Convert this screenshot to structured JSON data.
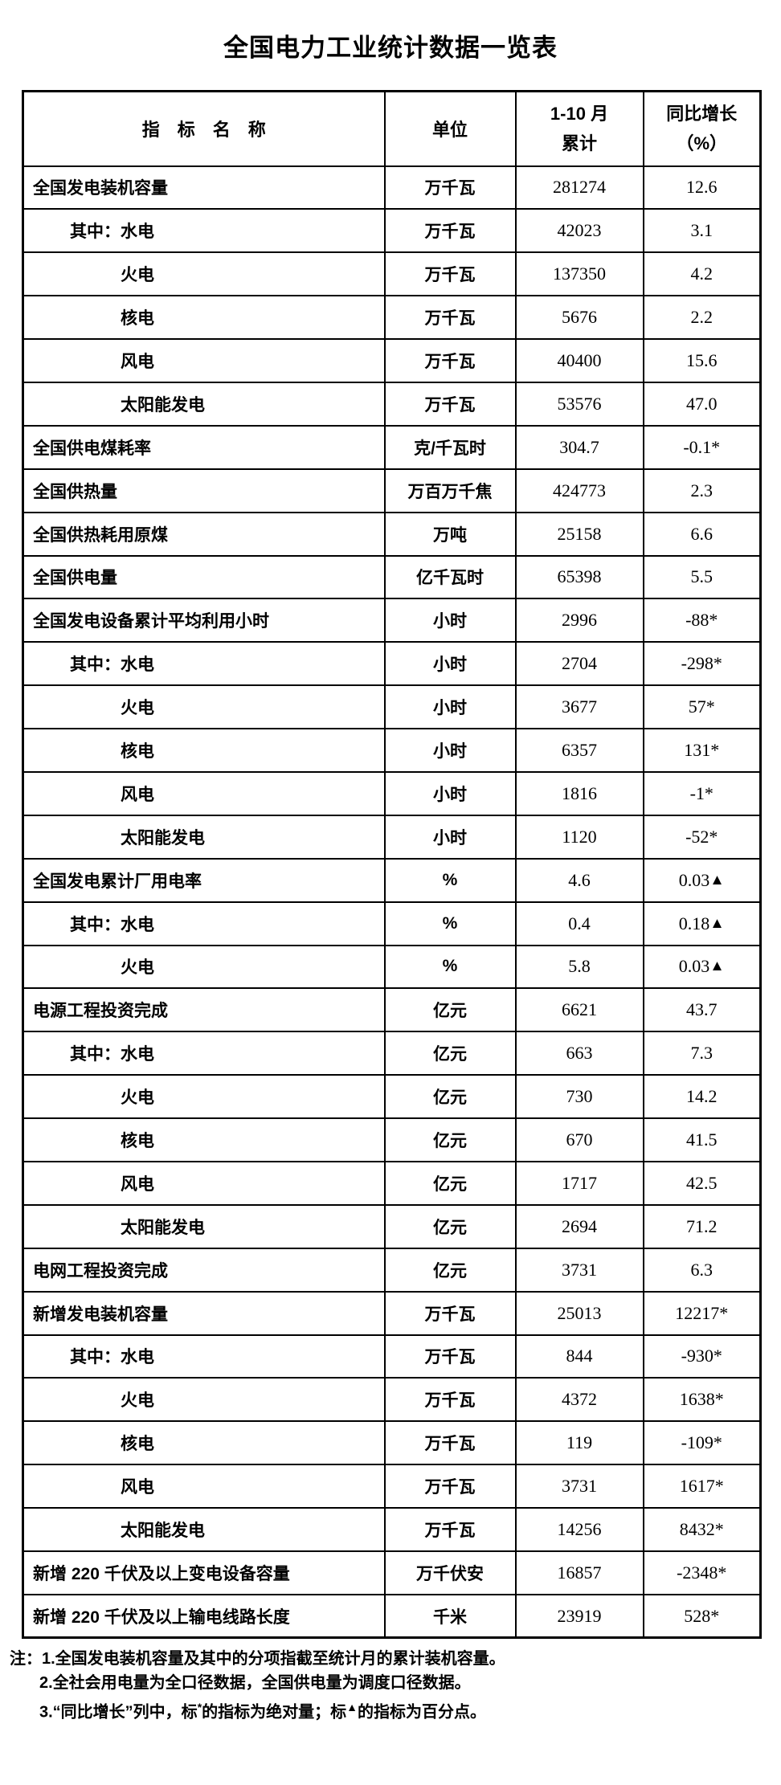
{
  "title": "全国电力工业统计数据一览表",
  "colors": {
    "background": "#ffffff",
    "text": "#000000",
    "border": "#000000"
  },
  "table": {
    "header": {
      "indicator": "指　标　名　称",
      "unit": "单位",
      "period_line1": "1-10 月",
      "period_line2": "累计",
      "growth_line1": "同比增长",
      "growth_line2": "（%）"
    },
    "rows": [
      {
        "label": "全国发电装机容量",
        "indent": 0,
        "unit": "万千瓦",
        "value": "281274",
        "growth": "12.6",
        "mark": ""
      },
      {
        "label": "其中：水电",
        "indent": 1,
        "unit": "万千瓦",
        "value": "42023",
        "growth": "3.1",
        "mark": ""
      },
      {
        "label": "火电",
        "indent": 2,
        "unit": "万千瓦",
        "value": "137350",
        "growth": "4.2",
        "mark": ""
      },
      {
        "label": "核电",
        "indent": 2,
        "unit": "万千瓦",
        "value": "5676",
        "growth": "2.2",
        "mark": ""
      },
      {
        "label": "风电",
        "indent": 2,
        "unit": "万千瓦",
        "value": "40400",
        "growth": "15.6",
        "mark": ""
      },
      {
        "label": "太阳能发电",
        "indent": 2,
        "unit": "万千瓦",
        "value": "53576",
        "growth": "47.0",
        "mark": ""
      },
      {
        "label": "全国供电煤耗率",
        "indent": 0,
        "unit": "克/千瓦时",
        "value": "304.7",
        "growth": "-0.1*",
        "mark": ""
      },
      {
        "label": "全国供热量",
        "indent": 0,
        "unit": "万百万千焦",
        "value": "424773",
        "growth": "2.3",
        "mark": ""
      },
      {
        "label": "全国供热耗用原煤",
        "indent": 0,
        "unit": "万吨",
        "value": "25158",
        "growth": "6.6",
        "mark": ""
      },
      {
        "label": "全国供电量",
        "indent": 0,
        "unit": "亿千瓦时",
        "value": "65398",
        "growth": "5.5",
        "mark": ""
      },
      {
        "label": "全国发电设备累计平均利用小时",
        "indent": 0,
        "unit": "小时",
        "value": "2996",
        "growth": "-88*",
        "mark": ""
      },
      {
        "label": "其中：水电",
        "indent": 1,
        "unit": "小时",
        "value": "2704",
        "growth": "-298*",
        "mark": ""
      },
      {
        "label": "火电",
        "indent": 2,
        "unit": "小时",
        "value": "3677",
        "growth": "57*",
        "mark": ""
      },
      {
        "label": "核电",
        "indent": 2,
        "unit": "小时",
        "value": "6357",
        "growth": "131*",
        "mark": ""
      },
      {
        "label": "风电",
        "indent": 2,
        "unit": "小时",
        "value": "1816",
        "growth": "-1*",
        "mark": ""
      },
      {
        "label": "太阳能发电",
        "indent": 2,
        "unit": "小时",
        "value": "1120",
        "growth": "-52*",
        "mark": ""
      },
      {
        "label": "全国发电累计厂用电率",
        "indent": 0,
        "unit": "%",
        "value": "4.6",
        "growth": "0.03",
        "mark": "▲"
      },
      {
        "label": "其中：水电",
        "indent": 1,
        "unit": "%",
        "value": "0.4",
        "growth": "0.18",
        "mark": "▲"
      },
      {
        "label": "火电",
        "indent": 2,
        "unit": "%",
        "value": "5.8",
        "growth": "0.03",
        "mark": "▲"
      },
      {
        "label": "电源工程投资完成",
        "indent": 0,
        "unit": "亿元",
        "value": "6621",
        "growth": "43.7",
        "mark": ""
      },
      {
        "label": "其中：水电",
        "indent": 1,
        "unit": "亿元",
        "value": "663",
        "growth": "7.3",
        "mark": ""
      },
      {
        "label": "火电",
        "indent": 2,
        "unit": "亿元",
        "value": "730",
        "growth": "14.2",
        "mark": ""
      },
      {
        "label": "核电",
        "indent": 2,
        "unit": "亿元",
        "value": "670",
        "growth": "41.5",
        "mark": ""
      },
      {
        "label": "风电",
        "indent": 2,
        "unit": "亿元",
        "value": "1717",
        "growth": "42.5",
        "mark": ""
      },
      {
        "label": "太阳能发电",
        "indent": 2,
        "unit": "亿元",
        "value": "2694",
        "growth": "71.2",
        "mark": ""
      },
      {
        "label": "电网工程投资完成",
        "indent": 0,
        "unit": "亿元",
        "value": "3731",
        "growth": "6.3",
        "mark": ""
      },
      {
        "label": "新增发电装机容量",
        "indent": 0,
        "unit": "万千瓦",
        "value": "25013",
        "growth": "12217*",
        "mark": ""
      },
      {
        "label": "其中：水电",
        "indent": 1,
        "unit": "万千瓦",
        "value": "844",
        "growth": "-930*",
        "mark": ""
      },
      {
        "label": "火电",
        "indent": 2,
        "unit": "万千瓦",
        "value": "4372",
        "growth": "1638*",
        "mark": ""
      },
      {
        "label": "核电",
        "indent": 2,
        "unit": "万千瓦",
        "value": "119",
        "growth": "-109*",
        "mark": ""
      },
      {
        "label": "风电",
        "indent": 2,
        "unit": "万千瓦",
        "value": "3731",
        "growth": "1617*",
        "mark": ""
      },
      {
        "label": "太阳能发电",
        "indent": 2,
        "unit": "万千瓦",
        "value": "14256",
        "growth": "8432*",
        "mark": ""
      },
      {
        "label": "新增 220 千伏及以上变电设备容量",
        "indent": 0,
        "unit": "万千伏安",
        "value": "16857",
        "growth": "-2348*",
        "mark": ""
      },
      {
        "label": "新增 220 千伏及以上输电线路长度",
        "indent": 0,
        "unit": "千米",
        "value": "23919",
        "growth": "528*",
        "mark": ""
      }
    ]
  },
  "notes": {
    "line1": "注：1.全国发电装机容量及其中的分项指截至统计月的累计装机容量。",
    "line2": "2.全社会用电量为全口径数据，全国供电量为调度口径数据。",
    "line3_parts": [
      "3.“同比增长”列中，标",
      "*",
      "的指标为绝对量；标",
      "▲",
      "的指标为百分点。"
    ]
  }
}
